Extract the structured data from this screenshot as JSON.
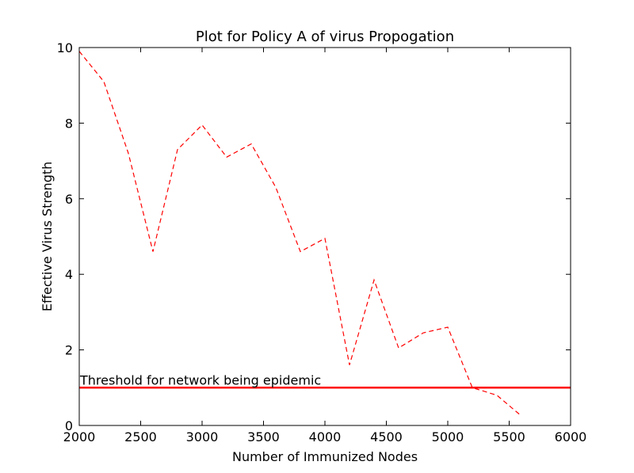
{
  "chart_data": {
    "type": "line",
    "title": "Plot for Policy A of virus Propogation",
    "xlabel": "Number of Immunized Nodes",
    "ylabel": "Effective Virus Strength",
    "xlim": [
      2000,
      6000
    ],
    "ylim": [
      0,
      10
    ],
    "xticks": [
      2000,
      2500,
      3000,
      3500,
      4000,
      4500,
      5000,
      5500,
      6000
    ],
    "yticks": [
      0,
      2,
      4,
      6,
      8,
      10
    ],
    "grid": false,
    "series": [
      {
        "style": "dashed",
        "color": "#ff0000",
        "x": [
          2000,
          2200,
          2400,
          2600,
          2800,
          3000,
          3200,
          3400,
          3600,
          3800,
          4000,
          4200,
          4400,
          4600,
          4800,
          5000,
          5200,
          5400,
          5600
        ],
        "y": [
          9.9,
          9.1,
          7.2,
          4.6,
          7.3,
          7.95,
          7.1,
          7.45,
          6.3,
          4.6,
          4.95,
          1.6,
          3.85,
          2.05,
          2.45,
          2.6,
          1.0,
          0.8,
          0.25
        ]
      }
    ],
    "reference_lines": [
      {
        "orientation": "horizontal",
        "y": 1.0,
        "color": "#ff0000",
        "style": "solid",
        "label": "Threshold for network being epidemic"
      }
    ]
  }
}
